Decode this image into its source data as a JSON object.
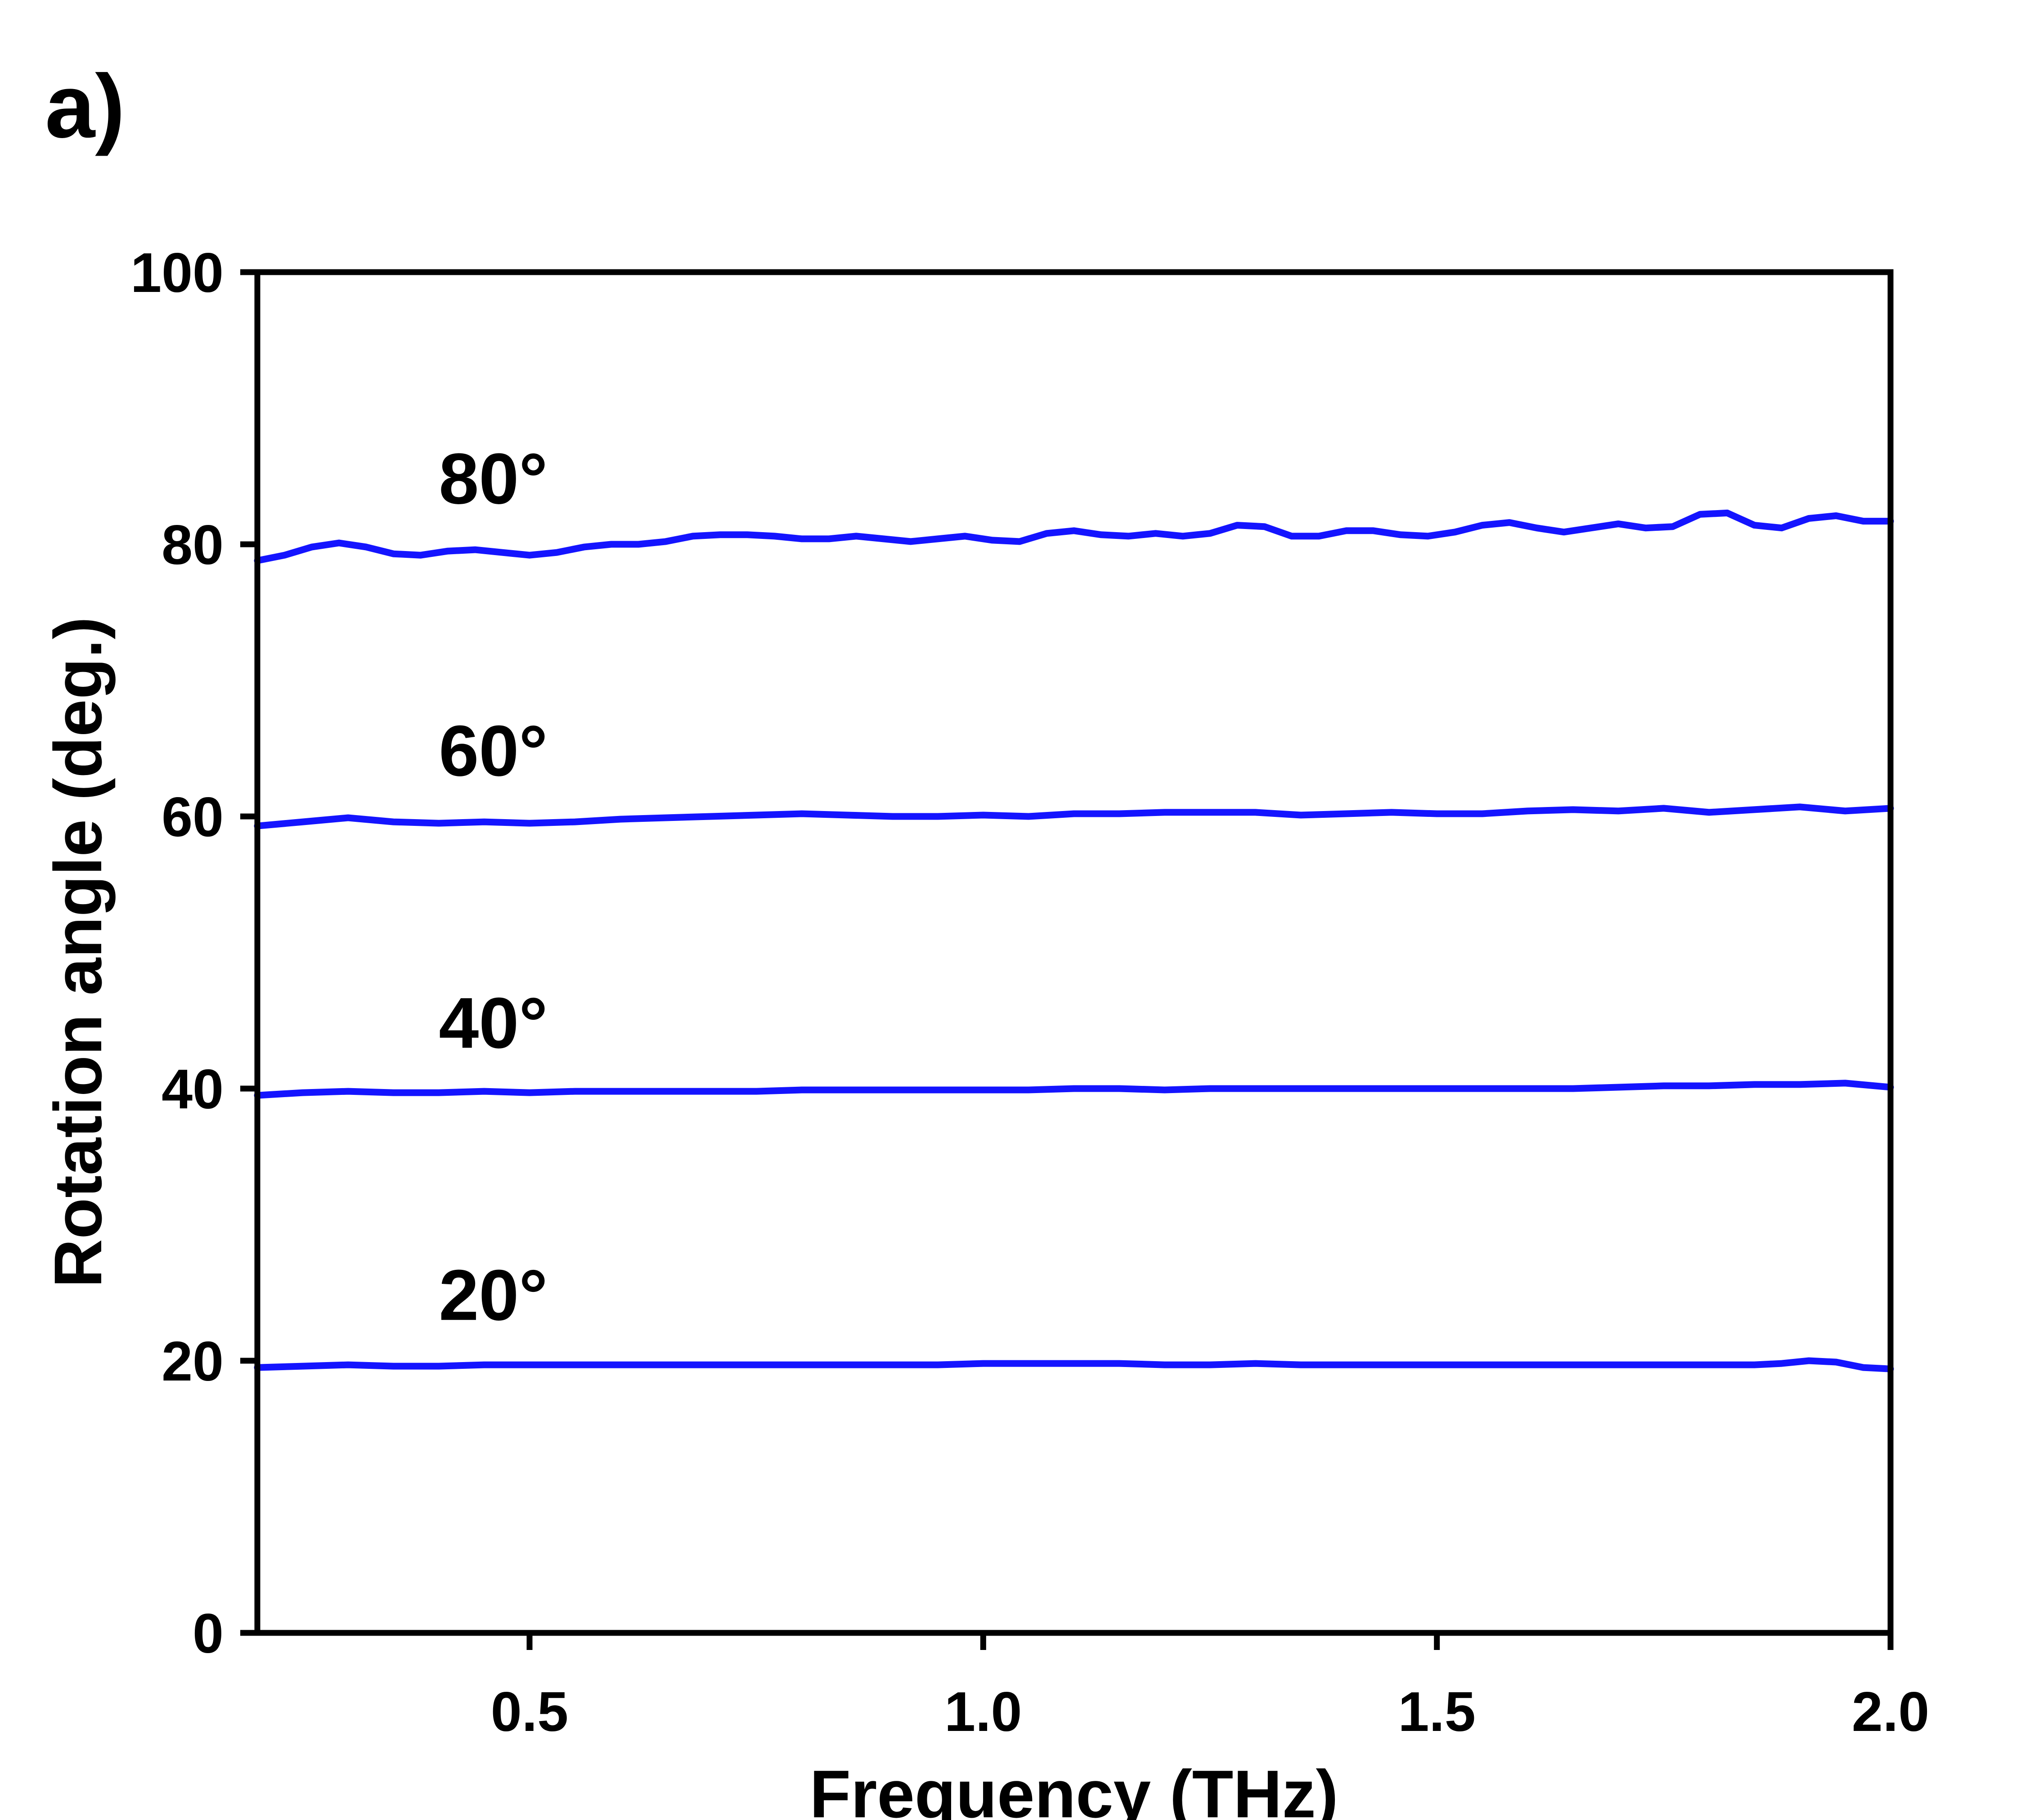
{
  "panel_label": "a)",
  "chart_data": {
    "type": "line",
    "title": "",
    "xlabel": "Frequency (THz)",
    "ylabel": "Rotation angle (deg.)",
    "xlim": [
      0.2,
      2.0
    ],
    "ylim": [
      0,
      100
    ],
    "x_ticks": [
      0.5,
      1.0,
      1.5,
      2.0
    ],
    "x_tick_labels": [
      "0.5",
      "1.0",
      "1.5",
      "2.0"
    ],
    "y_ticks": [
      0,
      20,
      40,
      60,
      80,
      100
    ],
    "y_tick_labels": [
      "0",
      "20",
      "40",
      "60",
      "80",
      "100"
    ],
    "grid": false,
    "line_color": "#1414ff",
    "series": [
      {
        "name": "80°",
        "label_x": 0.4,
        "label_y": 83,
        "x": [
          0.2,
          0.23,
          0.26,
          0.29,
          0.32,
          0.35,
          0.38,
          0.41,
          0.44,
          0.47,
          0.5,
          0.53,
          0.56,
          0.59,
          0.62,
          0.65,
          0.68,
          0.71,
          0.74,
          0.77,
          0.8,
          0.83,
          0.86,
          0.89,
          0.92,
          0.95,
          0.98,
          1.01,
          1.04,
          1.07,
          1.1,
          1.13,
          1.16,
          1.19,
          1.22,
          1.25,
          1.28,
          1.31,
          1.34,
          1.37,
          1.4,
          1.43,
          1.46,
          1.49,
          1.52,
          1.55,
          1.58,
          1.61,
          1.64,
          1.67,
          1.7,
          1.73,
          1.76,
          1.79,
          1.82,
          1.85,
          1.88,
          1.91,
          1.94,
          1.97,
          2.0
        ],
        "y": [
          78.8,
          79.2,
          79.8,
          80.1,
          79.8,
          79.3,
          79.2,
          79.5,
          79.6,
          79.4,
          79.2,
          79.4,
          79.8,
          80.0,
          80.0,
          80.2,
          80.6,
          80.7,
          80.7,
          80.6,
          80.4,
          80.4,
          80.6,
          80.4,
          80.2,
          80.4,
          80.6,
          80.3,
          80.2,
          80.8,
          81.0,
          80.7,
          80.6,
          80.8,
          80.6,
          80.8,
          81.4,
          81.3,
          80.6,
          80.6,
          81.0,
          81.0,
          80.7,
          80.6,
          80.9,
          81.4,
          81.6,
          81.2,
          80.9,
          81.2,
          81.5,
          81.2,
          81.3,
          82.2,
          82.3,
          81.4,
          81.2,
          81.9,
          82.1,
          81.7,
          81.7
        ]
      },
      {
        "name": "60°",
        "label_x": 0.4,
        "label_y": 63,
        "x": [
          0.2,
          0.25,
          0.3,
          0.35,
          0.4,
          0.45,
          0.5,
          0.55,
          0.6,
          0.65,
          0.7,
          0.75,
          0.8,
          0.85,
          0.9,
          0.95,
          1.0,
          1.05,
          1.1,
          1.15,
          1.2,
          1.25,
          1.3,
          1.35,
          1.4,
          1.45,
          1.5,
          1.55,
          1.6,
          1.65,
          1.7,
          1.75,
          1.8,
          1.85,
          1.9,
          1.95,
          2.0
        ],
        "y": [
          59.3,
          59.6,
          59.9,
          59.6,
          59.5,
          59.6,
          59.5,
          59.6,
          59.8,
          59.9,
          60.0,
          60.1,
          60.2,
          60.1,
          60.0,
          60.0,
          60.1,
          60.0,
          60.2,
          60.2,
          60.3,
          60.3,
          60.3,
          60.1,
          60.2,
          60.3,
          60.2,
          60.2,
          60.4,
          60.5,
          60.4,
          60.6,
          60.3,
          60.5,
          60.7,
          60.4,
          60.6
        ]
      },
      {
        "name": "40°",
        "label_x": 0.4,
        "label_y": 43,
        "x": [
          0.2,
          0.25,
          0.3,
          0.35,
          0.4,
          0.45,
          0.5,
          0.55,
          0.6,
          0.65,
          0.7,
          0.75,
          0.8,
          0.85,
          0.9,
          0.95,
          1.0,
          1.05,
          1.1,
          1.15,
          1.2,
          1.25,
          1.3,
          1.35,
          1.4,
          1.45,
          1.5,
          1.55,
          1.6,
          1.65,
          1.7,
          1.75,
          1.8,
          1.85,
          1.9,
          1.95,
          2.0
        ],
        "y": [
          39.5,
          39.7,
          39.8,
          39.7,
          39.7,
          39.8,
          39.7,
          39.8,
          39.8,
          39.8,
          39.8,
          39.8,
          39.9,
          39.9,
          39.9,
          39.9,
          39.9,
          39.9,
          40.0,
          40.0,
          39.9,
          40.0,
          40.0,
          40.0,
          40.0,
          40.0,
          40.0,
          40.0,
          40.0,
          40.0,
          40.1,
          40.2,
          40.2,
          40.3,
          40.3,
          40.4,
          40.1
        ]
      },
      {
        "name": "20°",
        "label_x": 0.4,
        "label_y": 23,
        "x": [
          0.2,
          0.25,
          0.3,
          0.35,
          0.4,
          0.45,
          0.5,
          0.55,
          0.6,
          0.65,
          0.7,
          0.75,
          0.8,
          0.85,
          0.9,
          0.95,
          1.0,
          1.05,
          1.1,
          1.15,
          1.2,
          1.25,
          1.3,
          1.35,
          1.4,
          1.45,
          1.5,
          1.55,
          1.6,
          1.65,
          1.7,
          1.75,
          1.8,
          1.85,
          1.88,
          1.91,
          1.94,
          1.97,
          2.0
        ],
        "y": [
          19.5,
          19.6,
          19.7,
          19.6,
          19.6,
          19.7,
          19.7,
          19.7,
          19.7,
          19.7,
          19.7,
          19.7,
          19.7,
          19.7,
          19.7,
          19.7,
          19.8,
          19.8,
          19.8,
          19.8,
          19.7,
          19.7,
          19.8,
          19.7,
          19.7,
          19.7,
          19.7,
          19.7,
          19.7,
          19.7,
          19.7,
          19.7,
          19.7,
          19.7,
          19.8,
          20.0,
          19.9,
          19.5,
          19.4
        ]
      }
    ]
  }
}
